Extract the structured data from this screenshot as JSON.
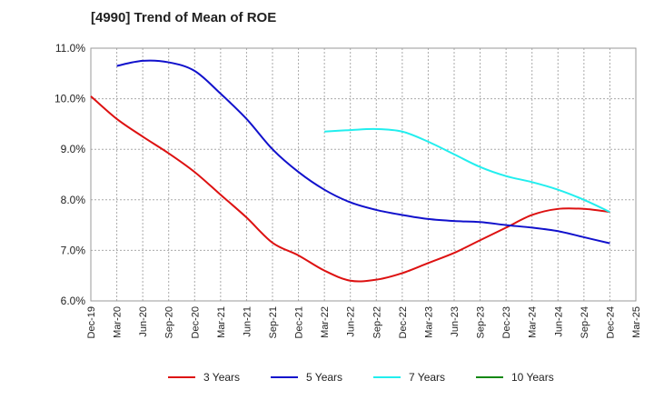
{
  "chart_data": {
    "type": "line",
    "title": "[4990]  Trend of Mean of ROE",
    "xlabel": "",
    "ylabel": "",
    "categories": [
      "Dec-19",
      "Mar-20",
      "Jun-20",
      "Sep-20",
      "Dec-20",
      "Mar-21",
      "Jun-21",
      "Sep-21",
      "Dec-21",
      "Mar-22",
      "Jun-22",
      "Sep-22",
      "Dec-22",
      "Mar-23",
      "Jun-23",
      "Sep-23",
      "Dec-23",
      "Mar-24",
      "Jun-24",
      "Sep-24",
      "Dec-24",
      "Mar-25"
    ],
    "y_ticks": [
      "6.0%",
      "7.0%",
      "8.0%",
      "9.0%",
      "10.0%",
      "11.0%"
    ],
    "ylim": [
      6.0,
      11.0
    ],
    "grid": true,
    "legend_position": "bottom",
    "series": [
      {
        "name": "3 Years",
        "color": "#dd1111",
        "values": [
          10.05,
          9.6,
          9.25,
          8.92,
          8.55,
          8.1,
          7.65,
          7.15,
          6.9,
          6.6,
          6.4,
          6.42,
          6.55,
          6.75,
          6.95,
          7.2,
          7.45,
          7.7,
          7.82,
          7.82,
          7.76,
          null
        ]
      },
      {
        "name": "5 Years",
        "color": "#1111cc",
        "values": [
          null,
          10.65,
          10.75,
          10.72,
          10.55,
          10.1,
          9.6,
          9.0,
          8.55,
          8.2,
          7.95,
          7.8,
          7.7,
          7.62,
          7.58,
          7.56,
          7.5,
          7.45,
          7.38,
          7.26,
          7.14,
          null
        ]
      },
      {
        "name": "7 Years",
        "color": "#22eeee",
        "values": [
          null,
          null,
          null,
          null,
          null,
          null,
          null,
          null,
          null,
          9.35,
          9.38,
          9.4,
          9.35,
          9.15,
          8.9,
          8.65,
          8.47,
          8.35,
          8.2,
          8.0,
          7.76,
          null
        ]
      },
      {
        "name": "10 Years",
        "color": "#118811",
        "values": [
          null,
          null,
          null,
          null,
          null,
          null,
          null,
          null,
          null,
          null,
          null,
          null,
          null,
          null,
          null,
          null,
          null,
          null,
          null,
          null,
          null,
          null
        ]
      }
    ]
  }
}
